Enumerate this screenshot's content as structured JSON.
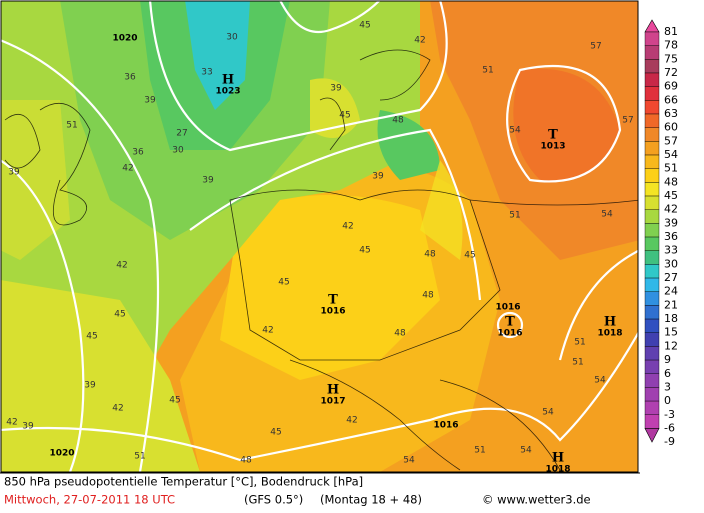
{
  "colorbar": [
    {
      "value": 81,
      "color": "#e8489c"
    },
    {
      "value": 78,
      "color": "#d0448c"
    },
    {
      "value": 75,
      "color": "#b83c74"
    },
    {
      "value": 72,
      "color": "#a83c5c"
    },
    {
      "value": 69,
      "color": "#c82848"
    },
    {
      "value": 66,
      "color": "#e0303c"
    },
    {
      "value": 63,
      "color": "#f04830"
    },
    {
      "value": 60,
      "color": "#f06828"
    },
    {
      "value": 57,
      "color": "#f08828"
    },
    {
      "value": 54,
      "color": "#f4a020"
    },
    {
      "value": 51,
      "color": "#f8b81c"
    },
    {
      "value": 48,
      "color": "#fcd018"
    },
    {
      "value": 45,
      "color": "#f4e424"
    },
    {
      "value": 42,
      "color": "#d8e030"
    },
    {
      "value": 39,
      "color": "#a8d840"
    },
    {
      "value": 36,
      "color": "#80d050"
    },
    {
      "value": 33,
      "color": "#58c860"
    },
    {
      "value": 30,
      "color": "#40c080"
    },
    {
      "value": 27,
      "color": "#30c8c8"
    },
    {
      "value": 24,
      "color": "#30b8e8"
    },
    {
      "value": 21,
      "color": "#3090e0"
    },
    {
      "value": 18,
      "color": "#3070d0"
    },
    {
      "value": 15,
      "color": "#3050c0"
    },
    {
      "value": 12,
      "color": "#4040b0"
    },
    {
      "value": 9,
      "color": "#6040b0"
    },
    {
      "value": 6,
      "color": "#7840b0"
    },
    {
      "value": 3,
      "color": "#9040b0"
    },
    {
      "value": 0,
      "color": "#a040b0"
    },
    {
      "value": -3,
      "color": "#b040b0"
    },
    {
      "value": -6,
      "color": "#c040b0"
    },
    {
      "value": -9,
      "color": "#b038a0"
    }
  ],
  "pressure_labels": [
    {
      "value": 1020
    },
    {
      "symbol": "H",
      "value": 1023
    },
    {
      "symbol": "T",
      "value": 1013
    },
    {
      "symbol": "T",
      "value": 1016
    },
    {
      "value": 1016
    },
    {
      "symbol": "T",
      "value": 1016
    },
    {
      "symbol": "H",
      "value": 1018
    },
    {
      "symbol": "H",
      "value": 1017
    },
    {
      "value": 1016
    },
    {
      "symbol": "H",
      "value": 1018
    },
    {
      "value": 1020
    }
  ],
  "isotherm_labels": [
    30,
    36,
    39,
    33,
    27,
    30,
    36,
    39,
    51,
    39,
    42,
    45,
    48,
    39,
    39,
    42,
    42,
    45,
    45,
    48,
    45,
    51,
    54,
    57,
    51,
    54,
    57,
    54,
    51,
    48,
    45,
    42,
    39,
    42,
    45,
    48,
    51,
    54,
    54,
    42,
    45,
    48,
    51,
    45,
    42,
    54,
    51,
    42,
    39,
    45
  ],
  "footer": {
    "title": "850 hPa pseudopotentielle Temperatur [°C], Bodendruck [hPa]",
    "date": "Mittwoch, 27-07-2011   18 UTC",
    "model": "(GFS 0.5°)",
    "run": "(Montag 18 + 48)",
    "credit": "© www.wetter3.de"
  }
}
